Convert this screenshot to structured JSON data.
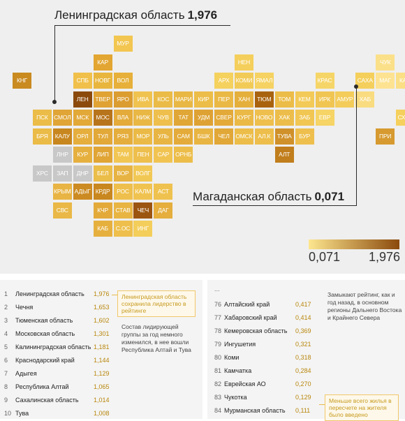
{
  "chart_data": {
    "type": "heatmap",
    "title": "",
    "legend": {
      "min_label": "0,071",
      "max_label": "1,976",
      "min_color": "#fde68f",
      "max_color": "#8b4a0c",
      "placement": "bottom-right"
    },
    "callouts": [
      {
        "name": "Ленинградская область",
        "value": "1,976"
      },
      {
        "name": "Магаданская область",
        "value": "0,071"
      }
    ],
    "tiles": [
      {
        "label": "МУР",
        "row": 0,
        "col": 5,
        "color": "#f2c650"
      },
      {
        "label": "КАР",
        "row": 1,
        "col": 4,
        "color": "#e3a632"
      },
      {
        "label": "НЕН",
        "row": 1,
        "col": 11,
        "color": "#f5cf5b"
      },
      {
        "label": "ЧУК",
        "row": 1,
        "col": 18,
        "color": "#fbe08a"
      },
      {
        "label": "КНГ",
        "row": 2,
        "col": 0,
        "color": "#c98a20"
      },
      {
        "label": "СПБ",
        "row": 2,
        "col": 3,
        "color": "#f0c04a"
      },
      {
        "label": "НОВГ",
        "row": 2,
        "col": 4,
        "color": "#e8b53d"
      },
      {
        "label": "ВОЛ",
        "row": 2,
        "col": 5,
        "color": "#e6b03a"
      },
      {
        "label": "АРХ",
        "row": 2,
        "col": 10,
        "color": "#f5d15e"
      },
      {
        "label": "КОМИ",
        "row": 2,
        "col": 11,
        "color": "#f2cb57"
      },
      {
        "label": "ЯМАЛ",
        "row": 2,
        "col": 12,
        "color": "#f5d262"
      },
      {
        "label": "КРАС",
        "row": 2,
        "col": 15,
        "color": "#f6d568"
      },
      {
        "label": "САХА",
        "row": 2,
        "col": 17,
        "color": "#f4cf5c"
      },
      {
        "label": "МАГ",
        "row": 2,
        "col": 18,
        "color": "#fde391"
      },
      {
        "label": "КАМ",
        "row": 2,
        "col": 19,
        "color": "#fbdf85"
      },
      {
        "label": "ЛЕН",
        "row": 3,
        "col": 3,
        "color": "#8b4a0c"
      },
      {
        "label": "ТВЕР",
        "row": 3,
        "col": 4,
        "color": "#dfa233"
      },
      {
        "label": "ЯРО",
        "row": 3,
        "col": 5,
        "color": "#db9c30"
      },
      {
        "label": "ИВА",
        "row": 3,
        "col": 6,
        "color": "#f0c350"
      },
      {
        "label": "КОС",
        "row": 3,
        "col": 7,
        "color": "#eabb47"
      },
      {
        "label": "МАРИ",
        "row": 3,
        "col": 8,
        "color": "#e8b744"
      },
      {
        "label": "КИР",
        "row": 3,
        "col": 9,
        "color": "#ecbd48"
      },
      {
        "label": "ПЕР",
        "row": 3,
        "col": 10,
        "color": "#eab845"
      },
      {
        "label": "ХАН",
        "row": 3,
        "col": 11,
        "color": "#e5af3c"
      },
      {
        "label": "ТЮМ",
        "row": 3,
        "col": 12,
        "color": "#a9630f"
      },
      {
        "label": "ТОМ",
        "row": 3,
        "col": 13,
        "color": "#ecbc48"
      },
      {
        "label": "КЕМ",
        "row": 3,
        "col": 14,
        "color": "#f3ca57"
      },
      {
        "label": "ИРК",
        "row": 3,
        "col": 15,
        "color": "#f0c552"
      },
      {
        "label": "АМУР",
        "row": 3,
        "col": 16,
        "color": "#f3cc5a"
      },
      {
        "label": "ХАБ",
        "row": 3,
        "col": 17,
        "color": "#f9dc80"
      },
      {
        "label": "ПСК",
        "row": 4,
        "col": 1,
        "color": "#ebbc47"
      },
      {
        "label": "СМОЛ",
        "row": 4,
        "col": 2,
        "color": "#e0a536"
      },
      {
        "label": "МСК",
        "row": 4,
        "col": 3,
        "color": "#e2a838"
      },
      {
        "label": "МОС",
        "row": 4,
        "col": 4,
        "color": "#b8741a"
      },
      {
        "label": "ВЛА",
        "row": 4,
        "col": 5,
        "color": "#e4ab3a"
      },
      {
        "label": "НИЖ",
        "row": 4,
        "col": 6,
        "color": "#e9b744"
      },
      {
        "label": "ЧУВ",
        "row": 4,
        "col": 7,
        "color": "#eebf4c"
      },
      {
        "label": "ТАТ",
        "row": 4,
        "col": 8,
        "color": "#e0a636"
      },
      {
        "label": "УДМ",
        "row": 4,
        "col": 9,
        "color": "#dea234"
      },
      {
        "label": "СВЕР",
        "row": 4,
        "col": 10,
        "color": "#e3aa3a"
      },
      {
        "label": "КУРГ",
        "row": 4,
        "col": 11,
        "color": "#eab946"
      },
      {
        "label": "НОВО",
        "row": 4,
        "col": 12,
        "color": "#eebf4d"
      },
      {
        "label": "ХАК",
        "row": 4,
        "col": 13,
        "color": "#ecbd4a"
      },
      {
        "label": "ЗАБ",
        "row": 4,
        "col": 14,
        "color": "#f1c653"
      },
      {
        "label": "ЕВР",
        "row": 4,
        "col": 15,
        "color": "#f6d465"
      },
      {
        "label": "СХЛН",
        "row": 4,
        "col": 19,
        "color": "#f5d05d"
      },
      {
        "label": "БРЯ",
        "row": 5,
        "col": 1,
        "color": "#ebbb47"
      },
      {
        "label": "КАЛУ",
        "row": 5,
        "col": 2,
        "color": "#c8861e"
      },
      {
        "label": "ОРЛ",
        "row": 5,
        "col": 3,
        "color": "#e5ae3d"
      },
      {
        "label": "ТУЛ",
        "row": 5,
        "col": 4,
        "color": "#e2a838"
      },
      {
        "label": "РЯЗ",
        "row": 5,
        "col": 5,
        "color": "#e5ad3c"
      },
      {
        "label": "МОР",
        "row": 5,
        "col": 6,
        "color": "#ebba46"
      },
      {
        "label": "УЛЬ",
        "row": 5,
        "col": 7,
        "color": "#e8b543"
      },
      {
        "label": "САМ",
        "row": 5,
        "col": 8,
        "color": "#e4ab3a"
      },
      {
        "label": "БШК",
        "row": 5,
        "col": 9,
        "color": "#e8b442"
      },
      {
        "label": "ЧЕЛ",
        "row": 5,
        "col": 10,
        "color": "#e1a737"
      },
      {
        "label": "ОМСК",
        "row": 5,
        "col": 11,
        "color": "#ecbd49"
      },
      {
        "label": "АЛ.К",
        "row": 5,
        "col": 12,
        "color": "#edbe4b"
      },
      {
        "label": "ТУВА",
        "row": 5,
        "col": 13,
        "color": "#d0912a"
      },
      {
        "label": "БУР",
        "row": 5,
        "col": 14,
        "color": "#eebf4d"
      },
      {
        "label": "ПРИ",
        "row": 5,
        "col": 18,
        "color": "#d69a30"
      },
      {
        "label": "ЛНР",
        "row": 6,
        "col": 2,
        "color": "#c8c8c8"
      },
      {
        "label": "КУР",
        "row": 6,
        "col": 3,
        "color": "#e6b03f"
      },
      {
        "label": "ЛИП",
        "row": 6,
        "col": 4,
        "color": "#e0a535"
      },
      {
        "label": "ТАМ",
        "row": 6,
        "col": 5,
        "color": "#f1c653"
      },
      {
        "label": "ПЕН",
        "row": 6,
        "col": 6,
        "color": "#eebf4c"
      },
      {
        "label": "САР",
        "row": 6,
        "col": 7,
        "color": "#f1c452"
      },
      {
        "label": "ОРНБ",
        "row": 6,
        "col": 8,
        "color": "#ecbd49"
      },
      {
        "label": "АЛТ",
        "row": 6,
        "col": 13,
        "color": "#c17e1c"
      },
      {
        "label": "ХРС",
        "row": 7,
        "col": 1,
        "color": "#c8c8c8"
      },
      {
        "label": "ЗАП",
        "row": 7,
        "col": 2,
        "color": "#c8c8c8"
      },
      {
        "label": "ДНР",
        "row": 7,
        "col": 3,
        "color": "#c8c8c8"
      },
      {
        "label": "БЕЛ",
        "row": 7,
        "col": 4,
        "color": "#ebbd49"
      },
      {
        "label": "ВОР",
        "row": 7,
        "col": 5,
        "color": "#e7b342"
      },
      {
        "label": "ВОЛГ",
        "row": 7,
        "col": 6,
        "color": "#f2c855"
      },
      {
        "label": "КРЫМ",
        "row": 8,
        "col": 2,
        "color": "#e8b444"
      },
      {
        "label": "АДЫГ",
        "row": 8,
        "col": 3,
        "color": "#cc8b22"
      },
      {
        "label": "КРДР",
        "row": 8,
        "col": 4,
        "color": "#c9871f"
      },
      {
        "label": "РОС",
        "row": 8,
        "col": 5,
        "color": "#eebf4c"
      },
      {
        "label": "КАЛМ",
        "row": 8,
        "col": 6,
        "color": "#f0c351"
      },
      {
        "label": "АСТ",
        "row": 8,
        "col": 7,
        "color": "#efc24f"
      },
      {
        "label": "СВС",
        "row": 9,
        "col": 2,
        "color": "#e9b846"
      },
      {
        "label": "КЧР",
        "row": 9,
        "col": 4,
        "color": "#e3aa3a"
      },
      {
        "label": "СТАВ",
        "row": 9,
        "col": 5,
        "color": "#e8b543"
      },
      {
        "label": "ЧЕЧ",
        "row": 9,
        "col": 6,
        "color": "#9c5510"
      },
      {
        "label": "ДАГ",
        "row": 9,
        "col": 7,
        "color": "#e5ae3d"
      },
      {
        "label": "КАБ",
        "row": 10,
        "col": 4,
        "color": "#e6b03f"
      },
      {
        "label": "С.ОС",
        "row": 10,
        "col": 5,
        "color": "#eebf4c"
      },
      {
        "label": "ИНГ",
        "row": 10,
        "col": 6,
        "color": "#f4ce5b"
      }
    ]
  },
  "top_list": {
    "rows": [
      {
        "rank": "1",
        "name": "Ленинградская область",
        "value": "1,976"
      },
      {
        "rank": "2",
        "name": "Чечня",
        "value": "1,653"
      },
      {
        "rank": "3",
        "name": "Тюменская область",
        "value": "1,602"
      },
      {
        "rank": "4",
        "name": "Московская область",
        "value": "1,301"
      },
      {
        "rank": "5",
        "name": "Калининградская область",
        "value": "1,181"
      },
      {
        "rank": "6",
        "name": "Краснодарский край",
        "value": "1,144"
      },
      {
        "rank": "7",
        "name": "Адыгея",
        "value": "1,129"
      },
      {
        "rank": "8",
        "name": "Республика Алтай",
        "value": "1,065"
      },
      {
        "rank": "9",
        "name": "Сахалинская область",
        "value": "1,014"
      },
      {
        "rank": "10",
        "name": "Тува",
        "value": "1,008"
      }
    ],
    "note_box": "Ленинградская область сохранила лидерство в рейтинге",
    "note": "Состав лидирующей группы за год немного изменился, в нее вошли Республика Алтай и Тува"
  },
  "bottom_list": {
    "ellipsis": "...",
    "rows": [
      {
        "rank": "76",
        "name": "Алтайский край",
        "value": "0,417"
      },
      {
        "rank": "77",
        "name": "Хабаровский край",
        "value": "0,414"
      },
      {
        "rank": "78",
        "name": "Кемеровская область",
        "value": "0,369"
      },
      {
        "rank": "79",
        "name": "Ингушетия",
        "value": "0,321"
      },
      {
        "rank": "80",
        "name": "Коми",
        "value": "0,318"
      },
      {
        "rank": "81",
        "name": "Камчатка",
        "value": "0,284"
      },
      {
        "rank": "82",
        "name": "Еврейская АО",
        "value": "0,270"
      },
      {
        "rank": "83",
        "name": "Чукотка",
        "value": "0,129"
      },
      {
        "rank": "84",
        "name": "Мурманская область",
        "value": "0,111"
      }
    ],
    "note": "Замыкают рейтинг, как и год назад, в основном регионы Дальнего Востока и Крайнего Севера",
    "note_box": "Меньше всего жилья в пересчете на жителя было введено"
  }
}
